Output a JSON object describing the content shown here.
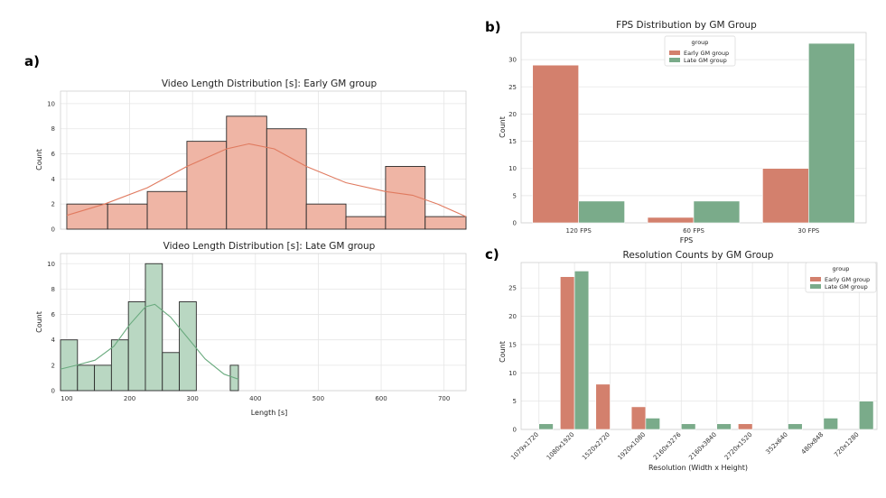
{
  "panel_labels": [
    "a)",
    "b)",
    "c)"
  ],
  "colors": {
    "early": "#d3806d",
    "late": "#7aab8a",
    "early_hist": "#efb5a5",
    "late_hist": "#b9d7c2",
    "early_kde": "#e07a5f",
    "late_kde": "#6aab7f"
  },
  "chart_data": [
    {
      "id": "a1",
      "type": "bar",
      "title": "Video Length Distribution [s]: Early GM group",
      "xlabel": "",
      "ylabel": "Count",
      "xlim": [
        90,
        735
      ],
      "ylim": [
        0,
        11
      ],
      "yticks": [
        0,
        2,
        4,
        6,
        8,
        10
      ],
      "bin_edges": [
        100,
        165,
        228,
        291,
        354,
        418,
        481,
        544,
        607,
        670,
        735
      ],
      "values": [
        2,
        2,
        3,
        7,
        9,
        8,
        2,
        1,
        5,
        1
      ],
      "kde": [
        [
          100,
          1.1
        ],
        [
          160,
          2.0
        ],
        [
          228,
          3.3
        ],
        [
          291,
          5.0
        ],
        [
          354,
          6.4
        ],
        [
          390,
          6.8
        ],
        [
          430,
          6.4
        ],
        [
          481,
          5.0
        ],
        [
          544,
          3.7
        ],
        [
          607,
          3.0
        ],
        [
          650,
          2.7
        ],
        [
          690,
          2.0
        ],
        [
          735,
          1.0
        ]
      ]
    },
    {
      "id": "a2",
      "type": "bar",
      "title": "Video Length Distribution [s]: Late GM group",
      "xlabel": "Length [s]",
      "ylabel": "Count",
      "xlim": [
        90,
        735
      ],
      "ylim": [
        0,
        10.8
      ],
      "xticks": [
        100,
        200,
        300,
        400,
        500,
        600,
        700
      ],
      "yticks": [
        0,
        2,
        4,
        6,
        8,
        10
      ],
      "bin_edges": [
        90,
        117,
        144,
        171,
        198,
        225,
        252,
        279,
        306,
        333,
        360,
        373
      ],
      "values": [
        4,
        2,
        2,
        4,
        7,
        10,
        3,
        7,
        0,
        0,
        2
      ],
      "kde": [
        [
          90,
          1.7
        ],
        [
          115,
          2.0
        ],
        [
          145,
          2.4
        ],
        [
          175,
          3.5
        ],
        [
          200,
          5.2
        ],
        [
          225,
          6.6
        ],
        [
          240,
          6.8
        ],
        [
          265,
          5.8
        ],
        [
          290,
          4.3
        ],
        [
          320,
          2.5
        ],
        [
          350,
          1.3
        ],
        [
          373,
          0.9
        ]
      ]
    },
    {
      "id": "b",
      "type": "bar",
      "title": "FPS Distribution by GM Group",
      "xlabel": "FPS",
      "ylabel": "Count",
      "ylim": [
        0,
        35
      ],
      "yticks": [
        0,
        5,
        10,
        15,
        20,
        25,
        30
      ],
      "categories": [
        "120 FPS",
        "60 FPS",
        "30 FPS"
      ],
      "legend_title": "group",
      "legend_position": "top-center",
      "series": [
        {
          "name": "Early GM group",
          "values": [
            29,
            1,
            10
          ]
        },
        {
          "name": "Late GM group",
          "values": [
            4,
            4,
            33
          ]
        }
      ]
    },
    {
      "id": "c",
      "type": "bar",
      "title": "Resolution Counts by GM Group",
      "xlabel": "Resolution (Width x Height)",
      "ylabel": "Count",
      "ylim": [
        0,
        29.5
      ],
      "yticks": [
        0,
        5,
        10,
        15,
        20,
        25
      ],
      "categories": [
        "1079x1720",
        "1080x1920",
        "1520x2720",
        "1920x1080",
        "2160x3276",
        "2160x3840",
        "2720x1520",
        "352x640",
        "480x848",
        "720x1280"
      ],
      "legend_title": "group",
      "legend_position": "top-right",
      "series": [
        {
          "name": "Early GM group",
          "values": [
            0,
            27,
            8,
            4,
            0,
            0,
            1,
            0,
            0,
            0
          ]
        },
        {
          "name": "Late GM group",
          "values": [
            1,
            28,
            0,
            2,
            1,
            1,
            0,
            1,
            2,
            5
          ]
        }
      ]
    }
  ]
}
